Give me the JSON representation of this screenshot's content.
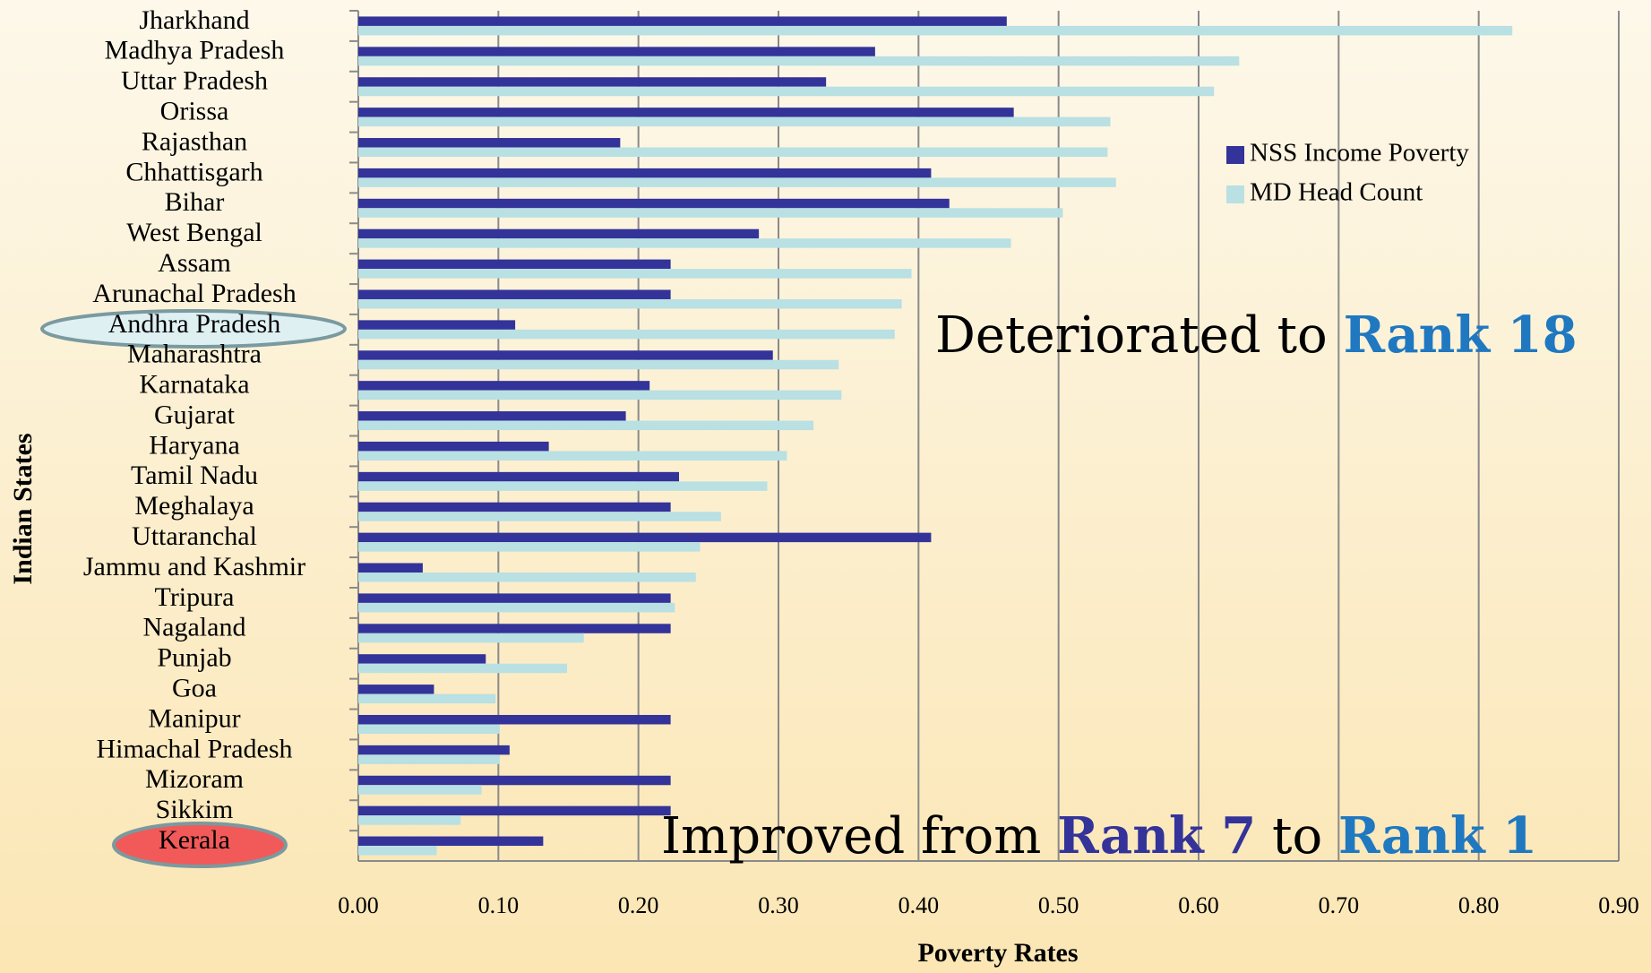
{
  "chart_data": {
    "type": "barh",
    "xlabel": "Poverty Rates",
    "ylabel": "Indian States",
    "categories": [
      "Jharkhand",
      "Madhya Pradesh",
      "Uttar Pradesh",
      "Orissa",
      "Rajasthan",
      "Chhattisgarh",
      "Bihar",
      "West Bengal",
      "Assam",
      "Arunachal Pradesh",
      "Andhra Pradesh",
      "Maharashtra",
      "Karnataka",
      "Gujarat",
      "Haryana",
      "Tamil Nadu",
      "Meghalaya",
      "Uttaranchal",
      "Jammu and Kashmir",
      "Tripura",
      "Nagaland",
      "Punjab",
      "Goa",
      "Manipur",
      "Himachal Pradesh",
      "Mizoram",
      "Sikkim",
      "Kerala"
    ],
    "series": [
      {
        "name": "NSS Income Poverty",
        "color": "#33339a",
        "values": [
          0.463,
          0.369,
          0.334,
          0.468,
          0.187,
          0.409,
          0.422,
          0.286,
          0.223,
          0.223,
          0.112,
          0.296,
          0.208,
          0.191,
          0.136,
          0.229,
          0.223,
          0.409,
          0.046,
          0.223,
          0.223,
          0.091,
          0.054,
          0.223,
          0.108,
          0.223,
          0.223,
          0.132
        ]
      },
      {
        "name": "MD Head Count",
        "color": "#b9e0e3",
        "values": [
          0.824,
          0.629,
          0.611,
          0.537,
          0.535,
          0.541,
          0.503,
          0.466,
          0.395,
          0.388,
          0.383,
          0.343,
          0.345,
          0.325,
          0.306,
          0.292,
          0.259,
          0.244,
          0.241,
          0.226,
          0.161,
          0.149,
          0.098,
          0.101,
          0.101,
          0.088,
          0.073,
          0.056
        ]
      }
    ],
    "xlim": [
      0,
      0.9
    ],
    "xticks": [
      {
        "value": 0,
        "label": "0.00"
      },
      {
        "value": 0.1,
        "label": "0.10"
      },
      {
        "value": 0.2,
        "label": "0.20"
      },
      {
        "value": 0.3,
        "label": "0.30"
      },
      {
        "value": 0.4,
        "label": "0.40"
      },
      {
        "value": 0.5,
        "label": "0.50"
      },
      {
        "value": 0.6,
        "label": "0.60"
      },
      {
        "value": 0.7,
        "label": "0.70"
      },
      {
        "value": 0.8,
        "label": "0.80"
      },
      {
        "value": 0.9,
        "label": "0.90"
      }
    ],
    "grid": true,
    "legend": "upper right",
    "annotations": [
      [
        "Deteriorated to",
        "Rank 18"
      ],
      [
        "Improved from",
        "Rank 7",
        "to",
        "Rank 1"
      ]
    ]
  }
}
